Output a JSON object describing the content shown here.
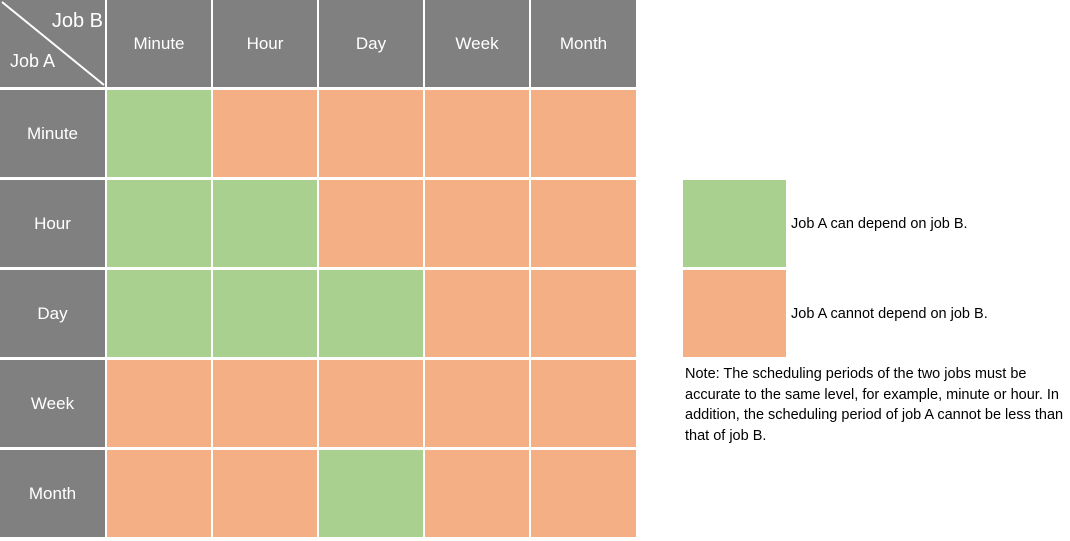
{
  "colors": {
    "header_bg": "#808080",
    "can_depend": "#a9d08e",
    "cannot_depend": "#f4b084",
    "header_text": "#ffffff"
  },
  "corner": {
    "job_b_label": "Job B",
    "job_a_label": "Job A"
  },
  "columns": [
    "Minute",
    "Hour",
    "Day",
    "Week",
    "Month"
  ],
  "rows": [
    {
      "label": "Minute",
      "cells": [
        "can",
        "cannot",
        "cannot",
        "cannot",
        "cannot"
      ]
    },
    {
      "label": "Hour",
      "cells": [
        "can",
        "can",
        "cannot",
        "cannot",
        "cannot"
      ]
    },
    {
      "label": "Day",
      "cells": [
        "can",
        "can",
        "can",
        "cannot",
        "cannot"
      ]
    },
    {
      "label": "Week",
      "cells": [
        "cannot",
        "cannot",
        "cannot",
        "cannot",
        "cannot"
      ]
    },
    {
      "label": "Month",
      "cells": [
        "cannot",
        "cannot",
        "can",
        "cannot",
        "cannot"
      ]
    }
  ],
  "legend": {
    "can_label": "Job A can depend on job B.",
    "cannot_label": "Job A cannot depend on job B."
  },
  "note": "Note: The scheduling periods of the two jobs must be accurate to the same level, for example, minute or hour. In addition, the scheduling period of job A cannot be less than that of job B."
}
